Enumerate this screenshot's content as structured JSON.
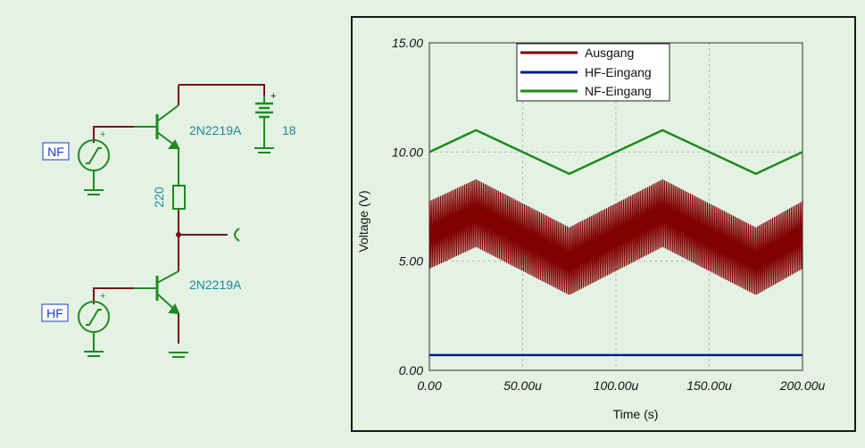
{
  "schematic": {
    "sources": [
      {
        "id": "nf",
        "label": "NF"
      },
      {
        "id": "hf",
        "label": "HF"
      }
    ],
    "transistor_top": {
      "model": "2N2219A"
    },
    "transistor_bottom": {
      "model": "2N2219A"
    },
    "resistor": {
      "value": "220"
    },
    "battery": {
      "value": "18",
      "polarity": "+"
    },
    "source_polarity": "+"
  },
  "colors": {
    "wire": "#7a1010",
    "component": "#1f8a1f",
    "ausgang": "#800000",
    "hf": "#0a1a8a",
    "nf": "#1f8a1f",
    "grid": "#b8b8b8"
  },
  "chart_data": {
    "type": "line",
    "xlabel": "Time (s)",
    "ylabel": "Voltage (V)",
    "xlim": [
      0,
      200
    ],
    "ylim": [
      0,
      15
    ],
    "x_unit_suffix": "u",
    "x_ticks": [
      "0.00",
      "50.00u",
      "100.00u",
      "150.00u",
      "200.00u"
    ],
    "y_ticks": [
      "0.00",
      "5.00",
      "10.00",
      "15.00"
    ],
    "grid": true,
    "legend_position": "top-center",
    "series": [
      {
        "name": "Ausgang",
        "color": "#800000",
        "style": "hf-modulated",
        "envelope_center": {
          "x": [
            0,
            25,
            75,
            125,
            175,
            200
          ],
          "y": [
            6.2,
            7.2,
            5.0,
            7.2,
            5.0,
            6.2
          ]
        },
        "amplitude": 1.55,
        "carrier_period": 1.0
      },
      {
        "name": "HF-Eingang",
        "color": "#0a1a8a",
        "x": [
          0,
          200
        ],
        "y": [
          0.7,
          0.7
        ]
      },
      {
        "name": "NF-Eingang",
        "color": "#1f8a1f",
        "x": [
          0,
          25,
          75,
          125,
          175,
          200
        ],
        "y": [
          10,
          11,
          9,
          11,
          9,
          10
        ]
      }
    ]
  }
}
